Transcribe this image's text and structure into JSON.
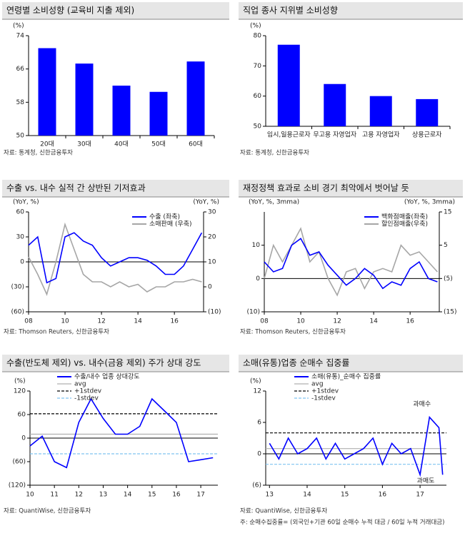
{
  "chart_data": [
    {
      "type": "bar",
      "title": "연령별 소비성향 (교육비 지출 제외)",
      "y_label": "(%)",
      "categories": [
        "20대",
        "30대",
        "40대",
        "50대",
        "60대"
      ],
      "values": [
        71,
        67.3,
        62,
        60.5,
        67.8
      ],
      "color": "#0000ff",
      "ylim": [
        50,
        74
      ],
      "yticks": [
        50,
        58,
        66,
        74
      ],
      "source": "자료: 통계청, 신한금융투자"
    },
    {
      "type": "bar",
      "title": "직업 종사 지위별 소비성향",
      "y_label": "(%)",
      "categories": [
        "임시,일용근로자",
        "무고용 자영업자",
        "고용 자영업자",
        "상용근로자"
      ],
      "values": [
        77,
        64,
        60,
        59
      ],
      "color": "#0000ff",
      "ylim": [
        50,
        80
      ],
      "yticks": [
        50,
        60,
        70,
        80
      ],
      "source": "자료: 통계청, 신한금융투자"
    },
    {
      "type": "line",
      "title": "수출 vs. 내수 실적 간 상반된 기저효과",
      "y_label": "(YoY, %)",
      "y2_label": "(YoY, %)",
      "x": [
        2008,
        2008.5,
        2009,
        2009.5,
        2010,
        2010.5,
        2011,
        2011.5,
        2012,
        2012.5,
        2013,
        2013.5,
        2014,
        2014.5,
        2015,
        2015.5,
        2016,
        2016.5,
        2017,
        2017.5
      ],
      "xlim": [
        2008,
        2017.6
      ],
      "xticks": [
        {
          "value": 2008,
          "label": "08"
        },
        {
          "value": 2010,
          "label": "10"
        },
        {
          "value": 2012,
          "label": "12"
        },
        {
          "value": 2014,
          "label": "14"
        },
        {
          "value": 2016,
          "label": "16"
        }
      ],
      "ylim": [
        -60,
        60
      ],
      "yticks": [
        {
          "value": -60,
          "label": "(60)"
        },
        {
          "value": -30,
          "label": "(30)"
        },
        0,
        30,
        60
      ],
      "y2lim": [
        -10,
        30
      ],
      "y2ticks": [
        {
          "value": -10,
          "label": "(10)"
        },
        0,
        10,
        20,
        30
      ],
      "series": [
        {
          "name": "수출 (좌축)",
          "color": "#0000ff",
          "values": [
            20,
            30,
            -25,
            -20,
            30,
            35,
            25,
            20,
            5,
            -5,
            0,
            5,
            5,
            2,
            -5,
            -15,
            -15,
            -5,
            15,
            35
          ]
        },
        {
          "name": "소매판매 (우축)",
          "color": "#a6a6a6",
          "axis": "y2",
          "values": [
            12,
            5,
            -3,
            10,
            25,
            15,
            5,
            2,
            2,
            0,
            2,
            0,
            1,
            -2,
            0,
            0,
            2,
            2,
            3,
            2
          ]
        }
      ],
      "source": "자료: Thomson Reuters, 신한금융투자"
    },
    {
      "type": "line",
      "title": "재정정책 효과로 소비 경기 최악에서 벗어날 듯",
      "y_label": "(YoY, %, 3mma)",
      "y2_label": "(YoY, %, 3mma)",
      "x": [
        2008,
        2008.5,
        2009,
        2009.5,
        2010,
        2010.5,
        2011,
        2011.5,
        2012,
        2012.5,
        2013,
        2013.5,
        2014,
        2014.5,
        2015,
        2015.5,
        2016,
        2016.5,
        2017,
        2017.5
      ],
      "xlim": [
        2008,
        2017.6
      ],
      "xticks": [
        {
          "value": 2008,
          "label": "08"
        },
        {
          "value": 2010,
          "label": "10"
        },
        {
          "value": 2012,
          "label": "12"
        },
        {
          "value": 2014,
          "label": "14"
        },
        {
          "value": 2016,
          "label": "16"
        }
      ],
      "ylim": [
        -10,
        20
      ],
      "yticks": [
        {
          "value": -10,
          "label": "(10)"
        },
        0,
        10
      ],
      "y2lim": [
        -15,
        15
      ],
      "y2ticks": [
        {
          "value": -15,
          "label": "(15)"
        },
        {
          "value": -5,
          "label": "(5)"
        },
        5,
        15
      ],
      "series": [
        {
          "name": "백화점매출(좌축)",
          "color": "#0000ff",
          "values": [
            5,
            2,
            3,
            10,
            12,
            7,
            8,
            4,
            1,
            -2,
            0,
            3,
            1,
            -3,
            -1,
            -2,
            3,
            5,
            0,
            -1
          ]
        },
        {
          "name": "할인점매출(우축)",
          "color": "#a6a6a6",
          "axis": "y2",
          "values": [
            -5,
            5,
            0,
            5,
            10,
            0,
            3,
            -5,
            -10,
            -3,
            -2,
            -8,
            -3,
            -2,
            -3,
            5,
            2,
            3,
            0,
            -3
          ]
        }
      ],
      "source": "자료: Thomson Reuters, 신한금융투자"
    },
    {
      "type": "line",
      "title": "수출(반도체 제외) vs. 내수(금융 제외) 주가 상대 강도",
      "y_label": "(%)",
      "x": [
        2010,
        2010.5,
        2011,
        2011.5,
        2012,
        2012.5,
        2013,
        2013.5,
        2014,
        2014.5,
        2015,
        2015.5,
        2016,
        2016.5,
        2017,
        2017.5
      ],
      "xlim": [
        2010,
        2017.7
      ],
      "xticks": [
        {
          "value": 2010,
          "label": "10"
        },
        {
          "value": 2011,
          "label": "11"
        },
        {
          "value": 2012,
          "label": "12"
        },
        {
          "value": 2013,
          "label": "13"
        },
        {
          "value": 2014,
          "label": "14"
        },
        {
          "value": 2015,
          "label": "15"
        },
        {
          "value": 2016,
          "label": "16"
        },
        {
          "value": 2017,
          "label": "17"
        }
      ],
      "ylim": [
        -120,
        120
      ],
      "yticks": [
        {
          "value": -120,
          "label": "(120)"
        },
        {
          "value": -60,
          "label": "(60)"
        },
        0,
        60,
        120
      ],
      "series": [
        {
          "name": "수출/내수 업종 상대강도",
          "color": "#0000ff",
          "values": [
            -20,
            5,
            -60,
            -75,
            40,
            100,
            50,
            10,
            10,
            30,
            100,
            70,
            40,
            -60,
            -55,
            -50
          ]
        }
      ],
      "ref_lines": [
        {
          "name": "avg",
          "color": "#b0b0b0",
          "value": 10,
          "dash": false
        },
        {
          "name": "+1stdev",
          "color": "#000000",
          "value": 62,
          "dash": true
        },
        {
          "name": "-1stdev",
          "color": "#7fc4f0",
          "value": -40,
          "dash": true
        }
      ],
      "source": "자료: QuantiWise, 신한금융투자"
    },
    {
      "type": "line",
      "title": "소매(유통)업종 순매수 집중률",
      "y_label": "(%)",
      "x": [
        2013,
        2013.25,
        2013.5,
        2013.75,
        2014,
        2014.25,
        2014.5,
        2014.75,
        2015,
        2015.25,
        2015.5,
        2015.75,
        2016,
        2016.25,
        2016.5,
        2016.75,
        2017,
        2017.25,
        2017.5,
        2017.6
      ],
      "xlim": [
        2012.9,
        2017.7
      ],
      "xticks": [
        {
          "value": 2013,
          "label": "13"
        },
        {
          "value": 2014,
          "label": "14"
        },
        {
          "value": 2015,
          "label": "15"
        },
        {
          "value": 2016,
          "label": "16"
        },
        {
          "value": 2017,
          "label": "17"
        }
      ],
      "ylim": [
        -6,
        12
      ],
      "yticks": [
        {
          "value": -6,
          "label": "(6)"
        },
        0,
        6,
        12
      ],
      "series": [
        {
          "name": "소매(유통)_순매수 집중률",
          "color": "#0000ff",
          "values": [
            2,
            -1,
            3,
            0,
            1,
            3,
            -1,
            2,
            -1,
            0,
            1,
            3,
            -2,
            2,
            0,
            1,
            -4,
            7,
            5,
            -4
          ]
        }
      ],
      "ref_lines": [
        {
          "name": "avg",
          "color": "#b0b0b0",
          "value": 1,
          "dash": false
        },
        {
          "name": "+1stdev",
          "color": "#000000",
          "value": 4,
          "dash": true
        },
        {
          "name": "-1stdev",
          "color": "#7fc4f0",
          "value": -2,
          "dash": true
        }
      ],
      "annotations": [
        "과매수",
        "과매도"
      ],
      "source": "자료: QuantiWise, 신한금융투자",
      "note": "주: 순매수집중률= (외국인+기관 60일 순매수 누적 대금 / 60일 누적 거래대금)"
    }
  ]
}
